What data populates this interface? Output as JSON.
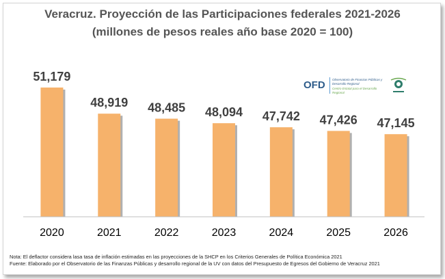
{
  "colors": {
    "bar": "#f6b26b",
    "bar_shadow": "#b0b0b0",
    "value_label": "#404040",
    "axis": "#bfbfbf",
    "title": "#555555"
  },
  "logo": {
    "acronym": "OFD",
    "name_line1": "Observatorio de Finanzas Públicas y",
    "name_line2": "Desarrollo Regional",
    "subtitle": "Centro Estatal para el Desarrollo Regional"
  },
  "chart_data": {
    "type": "bar",
    "title": "Veracruz. Proyección de las Participaciones federales 2021-2026",
    "subtitle": "(millones de pesos reales año base 2020 = 100)",
    "categories": [
      "2020",
      "2021",
      "2022",
      "2023",
      "2024",
      "2025",
      "2026"
    ],
    "values": [
      51179,
      48919,
      48485,
      48094,
      47742,
      47426,
      47145
    ],
    "value_labels": [
      "51,179",
      "48,919",
      "48,485",
      "48,094",
      "47,742",
      "47,426",
      "47,145"
    ],
    "xlabel": "",
    "ylabel": "",
    "ylim": [
      40000,
      52500
    ],
    "grid": false,
    "legend": "none"
  },
  "notes": {
    "nota": "Nota: El deflactor considera lasa tasa de inflación estimadas  en las proyecciones de la SHCP en los Criterios Generales  de Política Económica 2021",
    "fuente": "Fuente: Elaborado  por el Observatorio  de las Finanzas Públicas  y desarrollo regional  de la UV con datos del Presupuesto de Egresos del Gobierno de Veracruz 2021"
  }
}
